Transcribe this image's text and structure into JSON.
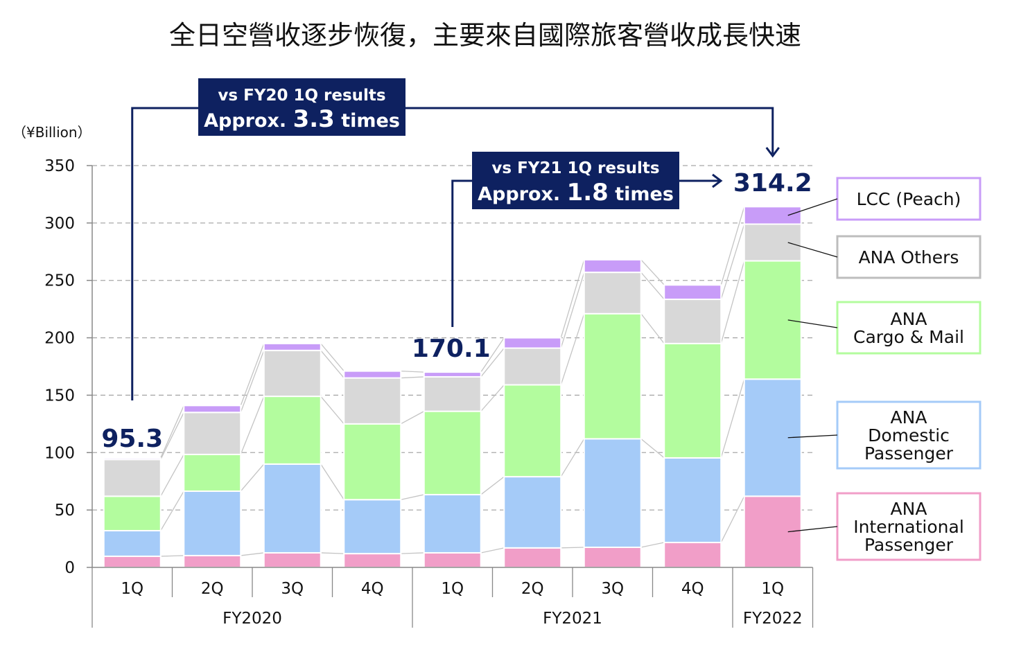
{
  "title": "全日空營收逐步恢復，主要來自國際旅客營收成長快速",
  "chart_data": {
    "type": "bar",
    "stacked": true,
    "title": "全日空營收逐步恢復，主要來自國際旅客營收成長快速",
    "ylabel": "(¥Billion)",
    "unit_label": "（¥Billion）",
    "xlabel": "",
    "ylim": [
      0,
      350
    ],
    "yticks": [
      0,
      50,
      100,
      150,
      200,
      250,
      300,
      350
    ],
    "grid": true,
    "categories": [
      "1Q",
      "2Q",
      "3Q",
      "4Q",
      "1Q",
      "2Q",
      "3Q",
      "4Q",
      "1Q"
    ],
    "groups": [
      {
        "label": "FY2020",
        "count": 4
      },
      {
        "label": "FY2021",
        "count": 4
      },
      {
        "label": "FY2022",
        "count": 1
      }
    ],
    "series": [
      {
        "name": "ANA International Passenger",
        "legend_lines": [
          "ANA",
          "International",
          "Passenger"
        ],
        "color": "#f19ec8",
        "border": "#f19ec8",
        "values": [
          9.7,
          10.3,
          12.7,
          12.0,
          12.7,
          17.0,
          17.5,
          21.7,
          62.0
        ]
      },
      {
        "name": "ANA Domestic Passenger",
        "legend_lines": [
          "ANA",
          "Domestic",
          "Passenger"
        ],
        "color": "#a5cbf8",
        "border": "#a5cbf8",
        "values": [
          22.3,
          56.1,
          77.3,
          47.0,
          50.7,
          62.0,
          94.5,
          73.7,
          102.0
        ]
      },
      {
        "name": "ANA Cargo & Mail",
        "legend_lines": [
          "ANA",
          "Cargo & Mail"
        ],
        "color": "#b3fc9e",
        "border": "#b3fc9e",
        "values": [
          30.0,
          32.0,
          59.0,
          66.0,
          72.6,
          80.0,
          109.0,
          99.6,
          103.0
        ]
      },
      {
        "name": "ANA Others",
        "legend_lines": [
          "ANA Others"
        ],
        "color": "#d8d8d8",
        "border": "#c0c0c0",
        "values": [
          32.0,
          36.6,
          40.0,
          40.0,
          30.0,
          32.0,
          36.0,
          38.5,
          32.0
        ]
      },
      {
        "name": "LCC (Peach)",
        "legend_lines": [
          "LCC (Peach)"
        ],
        "color": "#c89cf8",
        "border": "#c89cf8",
        "values": [
          1.3,
          6.0,
          6.0,
          6.0,
          4.1,
          9.0,
          11.0,
          12.5,
          15.2
        ]
      }
    ],
    "totals_labeled": [
      {
        "index": 0,
        "label": "95.3"
      },
      {
        "index": 4,
        "label": "170.1"
      },
      {
        "index": 8,
        "label": "314.2"
      }
    ],
    "annotations": [
      {
        "from_index": 0,
        "to_index": 8,
        "line1": "vs FY20 1Q results",
        "line2_prefix": "Approx. ",
        "line2_value": "3.3",
        "line2_suffix": " times"
      },
      {
        "from_index": 4,
        "to_index": 8,
        "line1": "vs FY21 1Q results",
        "line2_prefix": "Approx. ",
        "line2_value": "1.8",
        "line2_suffix": " times"
      }
    ],
    "legend": "right"
  }
}
